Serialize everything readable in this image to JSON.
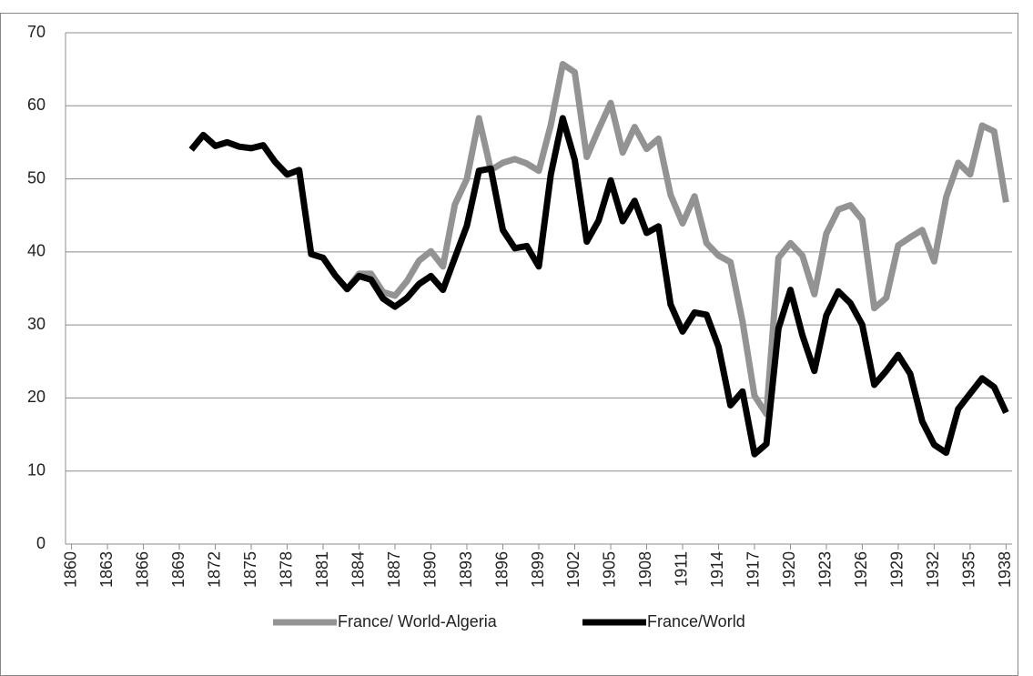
{
  "chart_data": {
    "type": "line",
    "x": [
      1860,
      1861,
      1862,
      1863,
      1864,
      1865,
      1866,
      1867,
      1868,
      1869,
      1870,
      1871,
      1872,
      1873,
      1874,
      1875,
      1876,
      1877,
      1878,
      1879,
      1880,
      1881,
      1882,
      1883,
      1884,
      1885,
      1886,
      1887,
      1888,
      1889,
      1890,
      1891,
      1892,
      1893,
      1894,
      1895,
      1896,
      1897,
      1898,
      1899,
      1900,
      1901,
      1902,
      1903,
      1904,
      1905,
      1906,
      1907,
      1908,
      1909,
      1910,
      1911,
      1912,
      1913,
      1914,
      1915,
      1916,
      1917,
      1918,
      1919,
      1920,
      1921,
      1922,
      1923,
      1924,
      1925,
      1926,
      1927,
      1928,
      1929,
      1930,
      1931,
      1932,
      1933,
      1934,
      1935,
      1936,
      1937,
      1938
    ],
    "xlim": [
      1859.5,
      1938.5
    ],
    "xticks": [
      1860,
      1863,
      1866,
      1869,
      1872,
      1875,
      1878,
      1881,
      1884,
      1887,
      1890,
      1893,
      1896,
      1899,
      1902,
      1905,
      1908,
      1911,
      1914,
      1917,
      1920,
      1923,
      1926,
      1929,
      1932,
      1935,
      1938
    ],
    "ylim": [
      0,
      70
    ],
    "yticks": [
      0,
      10,
      20,
      30,
      40,
      50,
      60,
      70
    ],
    "grid": true,
    "legend": "bottom",
    "series": [
      {
        "name": "France/ World-Algeria",
        "color": "#939393",
        "values": [
          null,
          null,
          null,
          null,
          null,
          null,
          null,
          null,
          null,
          null,
          null,
          null,
          null,
          null,
          null,
          null,
          null,
          null,
          null,
          null,
          null,
          null,
          null,
          34.9,
          37,
          37,
          34.5,
          34,
          36,
          38.8,
          40.1,
          38,
          46.5,
          50,
          58.3,
          51.2,
          52.2,
          52.7,
          52.1,
          51.1,
          57.4,
          65.7,
          64.6,
          53,
          56.8,
          60.4,
          53.6,
          57.1,
          54.1,
          55.5,
          47.8,
          43.9,
          47.6,
          41.2,
          39.5,
          38.6,
          30.5,
          20.3,
          17.8,
          39.2,
          41.2,
          39.5,
          34.2,
          42.5,
          45.8,
          46.4,
          44.4,
          32.3,
          33.7,
          40.9,
          42,
          43,
          38.7,
          47.5,
          52.2,
          50.6,
          57.3,
          56.5,
          46.8
        ]
      },
      {
        "name": "France/World",
        "color": "#000000",
        "values": [
          null,
          null,
          null,
          null,
          null,
          null,
          null,
          null,
          null,
          null,
          54,
          56,
          54.5,
          55,
          54.4,
          54.2,
          54.6,
          52.3,
          50.6,
          51.2,
          39.7,
          39.2,
          36.8,
          34.9,
          36.7,
          36.2,
          33.6,
          32.5,
          33.7,
          35.6,
          36.7,
          34.8,
          39.2,
          43.6,
          51.1,
          51.4,
          43,
          40.5,
          40.8,
          38,
          50.6,
          58.3,
          52.6,
          41.4,
          44.3,
          49.8,
          44.2,
          47,
          42.6,
          43.5,
          32.8,
          29.1,
          31.7,
          31.4,
          27,
          19,
          20.9,
          12.3,
          13.7,
          29.5,
          34.8,
          28.6,
          23.7,
          31.3,
          34.6,
          33,
          30,
          21.8,
          23.7,
          25.9,
          23.3,
          16.8,
          13.6,
          12.5,
          18.5,
          20.6,
          22.7,
          21.5,
          18
        ]
      }
    ]
  }
}
